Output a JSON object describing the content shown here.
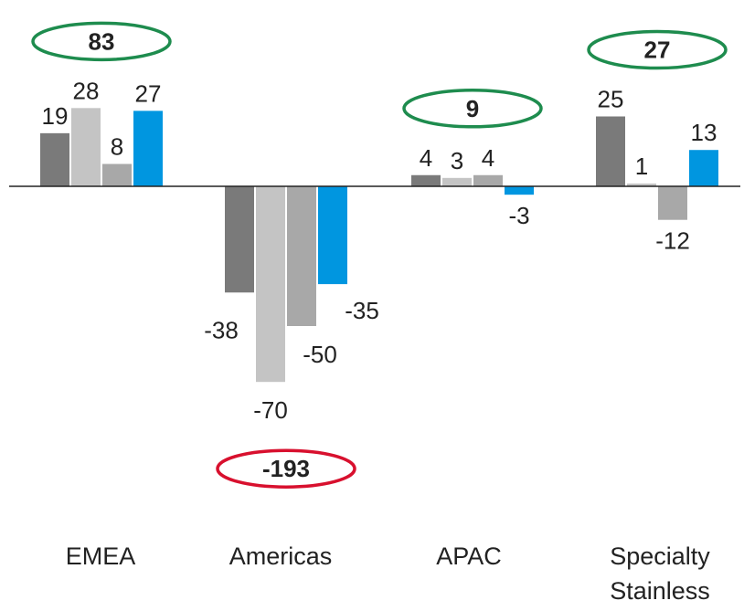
{
  "chart_data": {
    "type": "bar",
    "categories": [
      "EMEA",
      "Americas",
      "APAC",
      "Specialty Stainless"
    ],
    "category_lines": [
      [
        "EMEA"
      ],
      [
        "Americas"
      ],
      [
        "APAC"
      ],
      [
        "Specialty",
        "Stainless"
      ]
    ],
    "series": [
      {
        "color": "#7a7a7a",
        "values": [
          19,
          -38,
          4,
          25
        ]
      },
      {
        "color": "#c4c4c4",
        "values": [
          28,
          -70,
          3,
          1
        ]
      },
      {
        "color": "#a8a8a8",
        "values": [
          8,
          -50,
          4,
          -12
        ]
      },
      {
        "color": "#0096e0",
        "values": [
          27,
          -35,
          -3,
          13
        ]
      }
    ],
    "totals": [
      {
        "label": "83",
        "value": 83,
        "color": "#1e8c4e"
      },
      {
        "label": "-193",
        "value": -193,
        "color": "#d8102e"
      },
      {
        "label": "9",
        "value": 9,
        "color": "#1e8c4e"
      },
      {
        "label": "27",
        "value": 27,
        "color": "#1e8c4e"
      }
    ],
    "title": "",
    "xlabel": "",
    "ylabel": "",
    "legend": "none",
    "grid": false,
    "baseline_color": "#222222"
  }
}
